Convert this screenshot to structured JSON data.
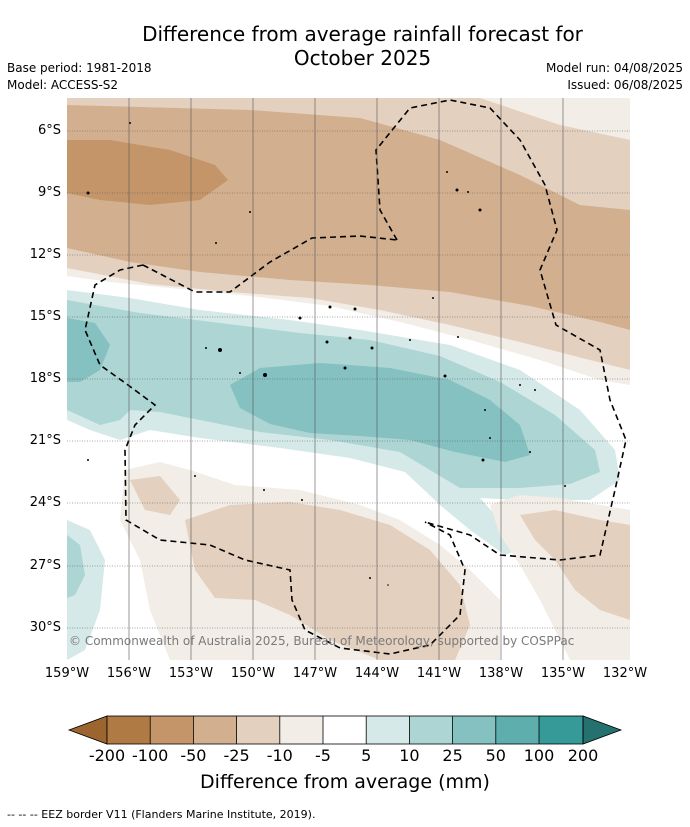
{
  "header": {
    "title_line1": "Difference from average rainfall forecast for",
    "title_line2": "October 2025",
    "base_period": "Base period: 1981-2018",
    "model": "Model: ACCESS-S2",
    "model_run": "Model run: 04/08/2025",
    "issued": "Issued: 06/08/2025"
  },
  "map": {
    "latitude_labels": [
      "6°S",
      "9°S",
      "12°S",
      "15°S",
      "18°S",
      "21°S",
      "24°S",
      "27°S",
      "30°S"
    ],
    "longitude_labels": [
      "159°W",
      "156°W",
      "153°W",
      "150°W",
      "147°W",
      "144°W",
      "141°W",
      "138°W",
      "135°W",
      "132°W"
    ],
    "copyright": "© Commonwealth of Australia 2025, Bureau of Meteorology, supported by COSPPac"
  },
  "colorbar": {
    "tick_labels": [
      "-200",
      "-100",
      "-50",
      "-25",
      "-10",
      "-5",
      "5",
      "10",
      "25",
      "50",
      "100",
      "200"
    ],
    "colors": [
      "#9c6530",
      "#b07a45",
      "#c39568",
      "#d2b08f",
      "#e4d0bf",
      "#f2ede6",
      "#ffffff",
      "#d5e9e8",
      "#acd5d4",
      "#84c1c0",
      "#5daeac",
      "#369a98",
      "#24716f"
    ],
    "title": "Difference from average (mm)"
  },
  "footnote": "-- -- -- EEZ border V11 (Flanders Marine Institute, 2019)."
}
